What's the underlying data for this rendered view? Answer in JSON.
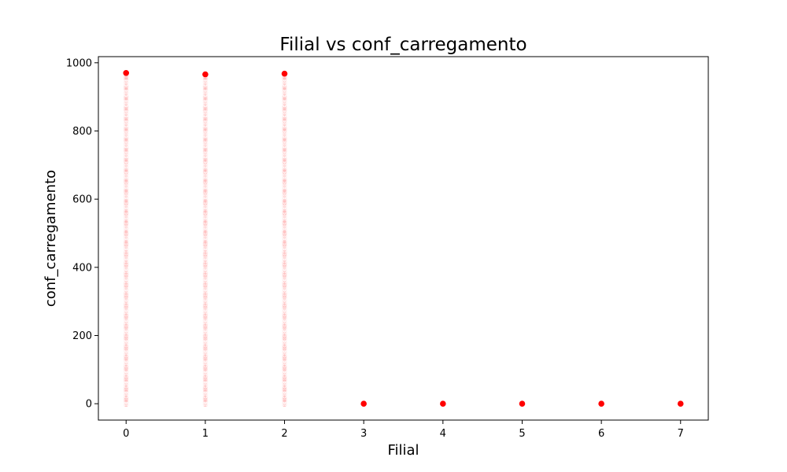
{
  "chart_data": {
    "type": "scatter",
    "title": "Filial vs conf_carregamento",
    "xlabel": "Filial",
    "ylabel": "conf_carregamento",
    "xlim": [
      -0.35,
      7.35
    ],
    "ylim": [
      -48,
      1018
    ],
    "xticks": [
      0,
      1,
      2,
      3,
      4,
      5,
      6,
      7
    ],
    "yticks": [
      0,
      200,
      400,
      600,
      800,
      1000
    ],
    "grid": false,
    "legend": "none",
    "marker_color": "#ff0000",
    "marker_edge_color": "#ffffff",
    "series": [
      {
        "points": [
          {
            "x": 0,
            "y_range": [
              0,
              970
            ],
            "step": 2
          },
          {
            "x": 1,
            "y_range": [
              0,
              966
            ],
            "step": 2
          },
          {
            "x": 2,
            "y_range": [
              0,
              968
            ],
            "step": 2
          },
          {
            "x": 3,
            "y": 0
          },
          {
            "x": 4,
            "y": 0
          },
          {
            "x": 5,
            "y": 0
          },
          {
            "x": 6,
            "y": 0
          },
          {
            "x": 7,
            "y": 0
          }
        ]
      }
    ]
  }
}
